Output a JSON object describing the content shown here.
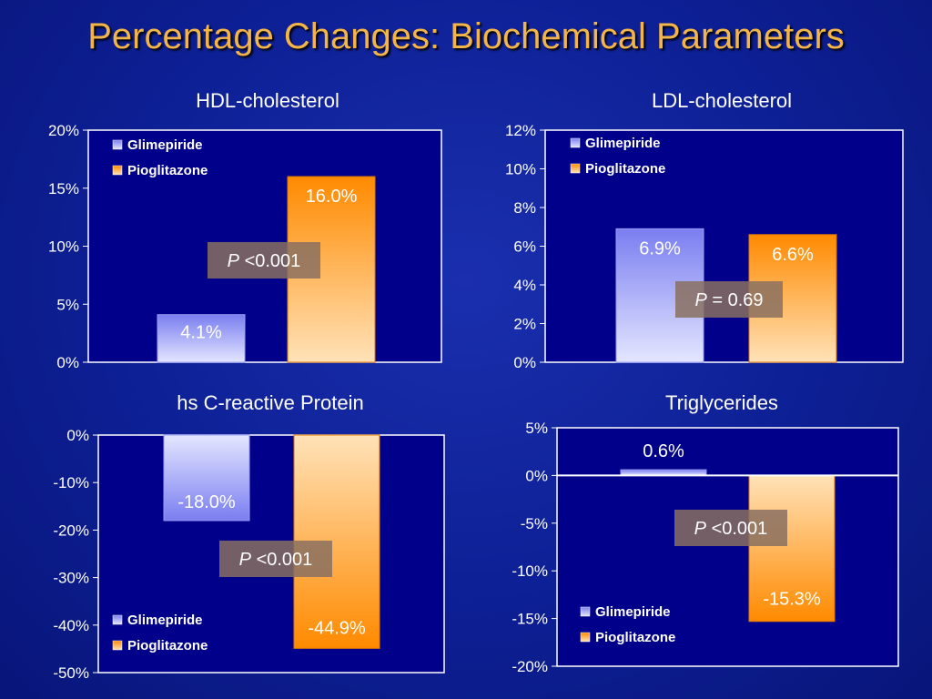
{
  "title": "Percentage Changes: Biochemical Parameters",
  "legend": [
    "Glimepiride",
    "Pioglitazone"
  ],
  "colors": {
    "plot_bg": "#00008b",
    "glimepiride_top": "#7a7ef0",
    "glimepiride_bottom": "#e4e6ff",
    "pioglitazone_top": "#ff8a00",
    "pioglitazone_bottom": "#ffe2b8",
    "pbox": "#8a7060",
    "pbox_dark": "#101870",
    "title": "#f4b548"
  },
  "chart_data": [
    {
      "type": "bar",
      "title": "HDL-cholesterol",
      "categories": [
        "Glimepiride",
        "Pioglitazone"
      ],
      "values": [
        4.1,
        16.0
      ],
      "value_labels": [
        "4.1%",
        "16.0%"
      ],
      "ylim": [
        0,
        20
      ],
      "yticks": [
        "0%",
        "5%",
        "10%",
        "15%",
        "20%"
      ],
      "p_value": {
        "p": "P",
        "rest": " <0.001"
      },
      "legend_position": "top-left",
      "grid": false
    },
    {
      "type": "bar",
      "title": "LDL-cholesterol",
      "categories": [
        "Glimepiride",
        "Pioglitazone"
      ],
      "values": [
        6.9,
        6.6
      ],
      "value_labels": [
        "6.9%",
        "6.6%"
      ],
      "ylim": [
        0,
        12
      ],
      "yticks": [
        "0%",
        "2%",
        "4%",
        "6%",
        "8%",
        "10%",
        "12%"
      ],
      "p_value": {
        "p": "P",
        "rest": " = 0.69"
      },
      "legend_position": "top-left",
      "grid": false
    },
    {
      "type": "bar",
      "title": "hs C-reactive Protein",
      "categories": [
        "Glimepiride",
        "Pioglitazone"
      ],
      "values": [
        -18.0,
        -44.9
      ],
      "value_labels": [
        "-18.0%",
        "-44.9%"
      ],
      "ylim": [
        -50,
        0
      ],
      "yticks": [
        "-50%",
        "-40%",
        "-30%",
        "-20%",
        "-10%",
        "0%"
      ],
      "p_value": {
        "p": "P",
        "rest": " <0.001"
      },
      "legend_position": "bottom-left",
      "grid": false
    },
    {
      "type": "bar",
      "title": "Triglycerides",
      "categories": [
        "Glimepiride",
        "Pioglitazone"
      ],
      "values": [
        0.6,
        -15.3
      ],
      "value_labels": [
        "0.6%",
        "-15.3%"
      ],
      "ylim": [
        -20,
        5
      ],
      "yticks": [
        "-20%",
        "-15%",
        "-10%",
        "-5%",
        "0%",
        "5%"
      ],
      "p_value": {
        "p": "P",
        "rest": " <0.001"
      },
      "legend_position": "bottom-left",
      "grid": false
    }
  ]
}
